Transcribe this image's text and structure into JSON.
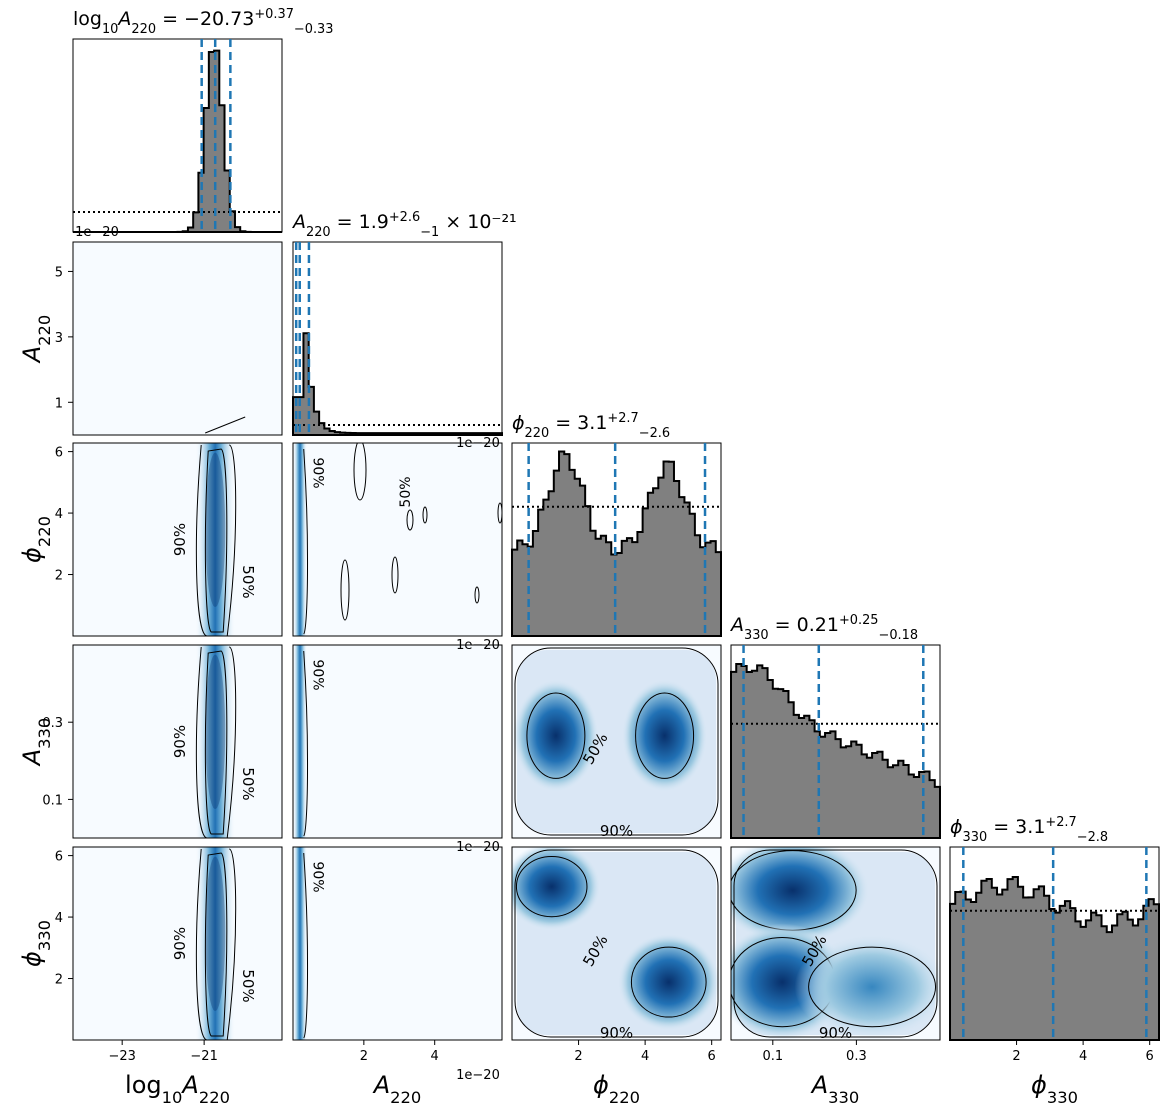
{
  "chart_data": {
    "type": "corner",
    "parameters": [
      {
        "id": "log10A220",
        "label_base": "log",
        "label_sub1": "10",
        "label_main": "A",
        "label_sub2": "220",
        "ticks": [
          -23,
          -21
        ],
        "tick_labels": [
          "−23",
          "−21"
        ],
        "range": [
          -24.2,
          -19.1
        ],
        "title": {
          "prefix": "log",
          "sub1": "10",
          "main": "A",
          "sub2": "220",
          "eq": " = −20.73",
          "sup": "+0.37",
          "sub": "−0.33",
          "suffix": ""
        },
        "quantiles": [
          -21.06,
          -20.73,
          -20.36
        ]
      },
      {
        "id": "A220",
        "label_main": "A",
        "label_sub2": "220",
        "ticks": [
          2,
          4
        ],
        "tick_labels": [
          "2",
          "4"
        ],
        "range": [
          0,
          5.9
        ],
        "offset": "1e−20",
        "title": {
          "main": "A",
          "sub2": "220",
          "eq": " = 1.9",
          "sup": "+2.6",
          "sub": "−1",
          "suffix": " × 10⁻²¹"
        },
        "quantiles": [
          0.09,
          0.19,
          0.45
        ]
      },
      {
        "id": "phi220",
        "label_main": "ϕ",
        "label_sub2": "220",
        "ticks": [
          2,
          4,
          6
        ],
        "tick_labels": [
          "2",
          "4",
          "6"
        ],
        "range": [
          0,
          6.28
        ],
        "title": {
          "main": "ϕ",
          "sub2": "220",
          "eq": " = 3.1",
          "sup": "+2.7",
          "sub": "−2.6",
          "suffix": ""
        },
        "quantiles": [
          0.5,
          3.1,
          5.8
        ]
      },
      {
        "id": "A330",
        "label_main": "A",
        "label_sub2": "330",
        "ticks": [
          0.1,
          0.3
        ],
        "tick_labels": [
          "0.1",
          "0.3"
        ],
        "range": [
          0,
          0.5
        ],
        "title": {
          "main": "A",
          "sub2": "330",
          "eq": " = 0.21",
          "sup": "+0.25",
          "sub": "−0.18",
          "suffix": ""
        },
        "quantiles": [
          0.03,
          0.21,
          0.46
        ]
      },
      {
        "id": "phi330",
        "label_main": "ϕ",
        "label_sub2": "330",
        "ticks": [
          2,
          4,
          6
        ],
        "tick_labels": [
          "2",
          "4",
          "6"
        ],
        "range": [
          0,
          6.28
        ],
        "title": {
          "main": "ϕ",
          "sub2": "330",
          "eq": " = 3.1",
          "sup": "+2.7",
          "sub": "−2.8",
          "suffix": ""
        },
        "quantiles": [
          0.4,
          3.1,
          5.9
        ]
      }
    ],
    "offset_label": "1e−20",
    "y_ticks": {
      "A220": {
        "ticks": [
          1,
          3,
          5
        ],
        "labels": [
          "1",
          "3",
          "5"
        ]
      },
      "phi220": {
        "ticks": [
          2,
          4,
          6
        ],
        "labels": [
          "2",
          "4",
          "6"
        ]
      },
      "A330": {
        "ticks": [
          0.1,
          0.3
        ],
        "labels": [
          "0.1",
          "0.3"
        ]
      },
      "phi330": {
        "ticks": [
          2,
          4,
          6
        ],
        "labels": [
          "2",
          "4",
          "6"
        ]
      }
    },
    "contour_labels": [
      "50%",
      "90%"
    ],
    "colors": {
      "hist_fill": "#808080",
      "quantile_line": "#1f77b4",
      "kde_dark": "#08306b",
      "kde_light": "#f7fbff"
    }
  }
}
